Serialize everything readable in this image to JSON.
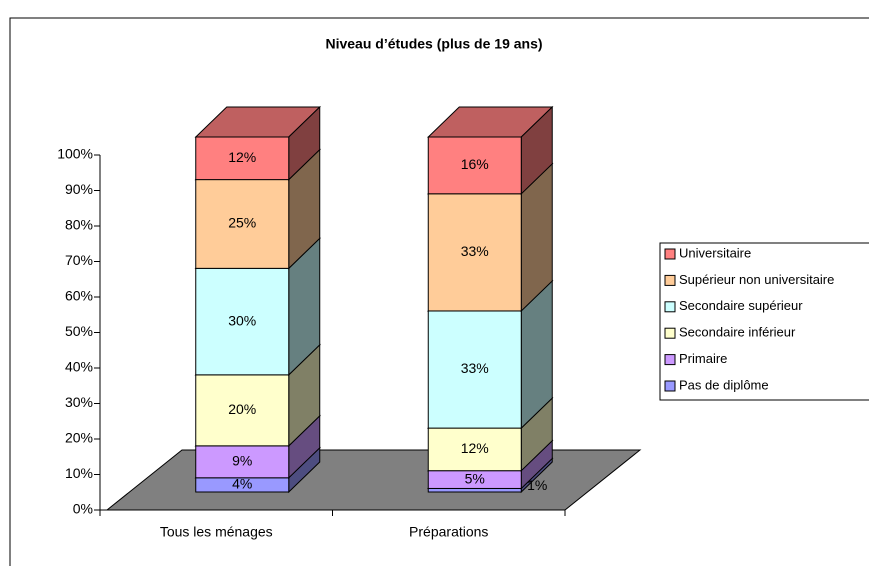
{
  "chart_data": {
    "type": "bar3d_stacked",
    "title": "Niveau d’études (plus de 19 ans)",
    "categories": [
      "Tous les ménages",
      "Préparations"
    ],
    "series": [
      {
        "name": "Pas de diplôme",
        "color": "#9999ff",
        "values": [
          4,
          1
        ],
        "value_labels": [
          "4%",
          "1%"
        ]
      },
      {
        "name": "Primaire",
        "color": "#cc99ff",
        "values": [
          9,
          5
        ],
        "value_labels": [
          "9%",
          "5%"
        ]
      },
      {
        "name": "Secondaire inférieur",
        "color": "#ffffcc",
        "values": [
          20,
          12
        ],
        "value_labels": [
          "20%",
          "12%"
        ]
      },
      {
        "name": "Secondaire supérieur",
        "color": "#ccffff",
        "values": [
          30,
          33
        ],
        "value_labels": [
          "30%",
          "33%"
        ]
      },
      {
        "name": "Supérieur non universitaire",
        "color": "#ffcc99",
        "values": [
          25,
          33
        ],
        "value_labels": [
          "25%",
          "33%"
        ]
      },
      {
        "name": "Universitaire",
        "color": "#ff8080",
        "values": [
          12,
          16
        ],
        "value_labels": [
          "12%",
          "16%"
        ]
      }
    ],
    "ylim": [
      0,
      100
    ],
    "yticks": [
      {
        "value": 0,
        "label": "0%"
      },
      {
        "value": 10,
        "label": "10%"
      },
      {
        "value": 20,
        "label": "20%"
      },
      {
        "value": 30,
        "label": "30%"
      },
      {
        "value": 40,
        "label": "40%"
      },
      {
        "value": 50,
        "label": "50%"
      },
      {
        "value": 60,
        "label": "60%"
      },
      {
        "value": 70,
        "label": "70%"
      },
      {
        "value": 80,
        "label": "80%"
      },
      {
        "value": 90,
        "label": "90%"
      },
      {
        "value": 100,
        "label": "100%"
      }
    ],
    "floor_color": "#808080",
    "legend": "right"
  }
}
